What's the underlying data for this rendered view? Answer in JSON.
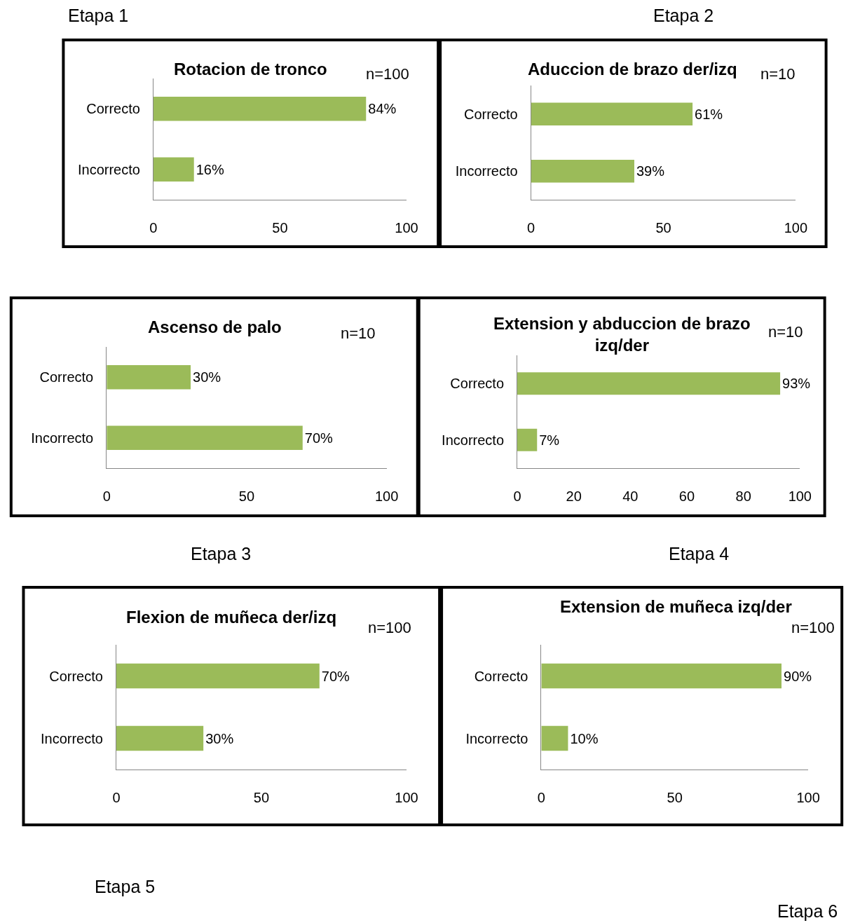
{
  "chart_data": [
    {
      "type": "bar",
      "orientation": "horizontal",
      "title": "Rotacion de tronco",
      "categories": [
        "Correcto",
        "Incorrecto"
      ],
      "values": [
        84,
        16
      ],
      "value_labels": [
        "84%",
        "16%"
      ],
      "color": "#9bbb59",
      "xlim": [
        0,
        100
      ],
      "xticks": [
        0,
        50,
        100
      ],
      "annotations": [
        "n=100",
        "Etapa 1"
      ]
    },
    {
      "type": "bar",
      "orientation": "horizontal",
      "title": "Aduccion de brazo der/izq",
      "categories": [
        "Correcto",
        "Incorrecto"
      ],
      "values": [
        61,
        39
      ],
      "value_labels": [
        "61%",
        "39%"
      ],
      "color": "#9bbb59",
      "xlim": [
        0,
        100
      ],
      "xticks": [
        0,
        50,
        100
      ],
      "annotations": [
        "n=10",
        "Etapa 2"
      ]
    },
    {
      "type": "bar",
      "orientation": "horizontal",
      "title": "Ascenso de palo",
      "categories": [
        "Correcto",
        "Incorrecto"
      ],
      "values": [
        30,
        70
      ],
      "value_labels": [
        "30%",
        "70%"
      ],
      "color": "#9bbb59",
      "xlim": [
        0,
        100
      ],
      "xticks": [
        0,
        50,
        100
      ],
      "annotations": [
        "n=10",
        "Etapa 3"
      ]
    },
    {
      "type": "bar",
      "orientation": "horizontal",
      "title": "Extension y abduccion de brazo izq/der",
      "categories": [
        "Correcto",
        "Incorrecto"
      ],
      "values": [
        93,
        7
      ],
      "value_labels": [
        "93%",
        "7%"
      ],
      "color": "#9bbb59",
      "xlim": [
        0,
        100
      ],
      "xticks": [
        0,
        20,
        40,
        60,
        80,
        100
      ],
      "annotations": [
        "n=10",
        "Etapa 4"
      ]
    },
    {
      "type": "bar",
      "orientation": "horizontal",
      "title": "Flexion de muñeca der/izq",
      "categories": [
        "Correcto",
        "Incorrecto"
      ],
      "values": [
        70,
        30
      ],
      "value_labels": [
        "70%",
        "30%"
      ],
      "color": "#9bbb59",
      "xlim": [
        0,
        100
      ],
      "xticks": [
        0,
        50,
        100
      ],
      "annotations": [
        "n=100",
        "Etapa 5"
      ]
    },
    {
      "type": "bar",
      "orientation": "horizontal",
      "title": "Extension de muñeca izq/der",
      "categories": [
        "Correcto",
        "Incorrecto"
      ],
      "values": [
        90,
        10
      ],
      "value_labels": [
        "90%",
        "10%"
      ],
      "color": "#9bbb59",
      "xlim": [
        0,
        100
      ],
      "xticks": [
        0,
        50,
        100
      ],
      "annotations": [
        "n=100",
        "Etapa 6"
      ]
    }
  ]
}
